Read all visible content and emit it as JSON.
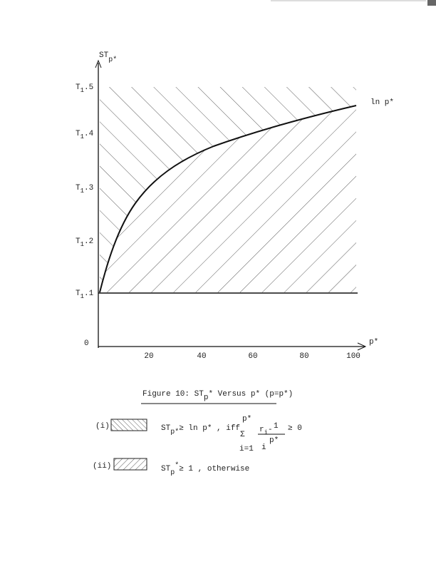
{
  "figure": {
    "y_axis_label": {
      "main": "ST",
      "sub": "p*"
    },
    "y_tick_labels": [
      {
        "main": "T",
        "sub": "1",
        "suffix": ".5"
      },
      {
        "main": "T",
        "sub": "1",
        "suffix": ".4"
      },
      {
        "main": "T",
        "sub": "1",
        "suffix": ".3"
      },
      {
        "main": "T",
        "sub": "1",
        "suffix": ".2"
      },
      {
        "main": "T",
        "sub": "1",
        "suffix": ".1"
      }
    ],
    "origin_label": "0",
    "x_tick_labels": [
      "20",
      "40",
      "60",
      "80",
      "100"
    ],
    "x_axis_label": "p*",
    "curve_label": "ln p*"
  },
  "caption": {
    "prefix": "Figure 10:  ST",
    "sub": "p",
    "suffix": "* Versus p* (p=p*)"
  },
  "legend": [
    {
      "marker": "(i)",
      "st": "ST",
      "st_sub": "p*",
      "relation": "≥ ln p* , iff",
      "sum_top": "p*",
      "sigma": "Σ",
      "sum_bottom": "i=1",
      "numerator": "r",
      "numerator_sub": "i",
      "minus": "-",
      "frac_num": "1",
      "frac_den": "p*",
      "frac_den_sub": "i",
      "comparison": "≥  0"
    },
    {
      "marker": "(ii)",
      "st": "ST",
      "st_sub": "p",
      "st_sup": "*",
      "relation": "≥ 1 , otherwise"
    }
  ]
}
